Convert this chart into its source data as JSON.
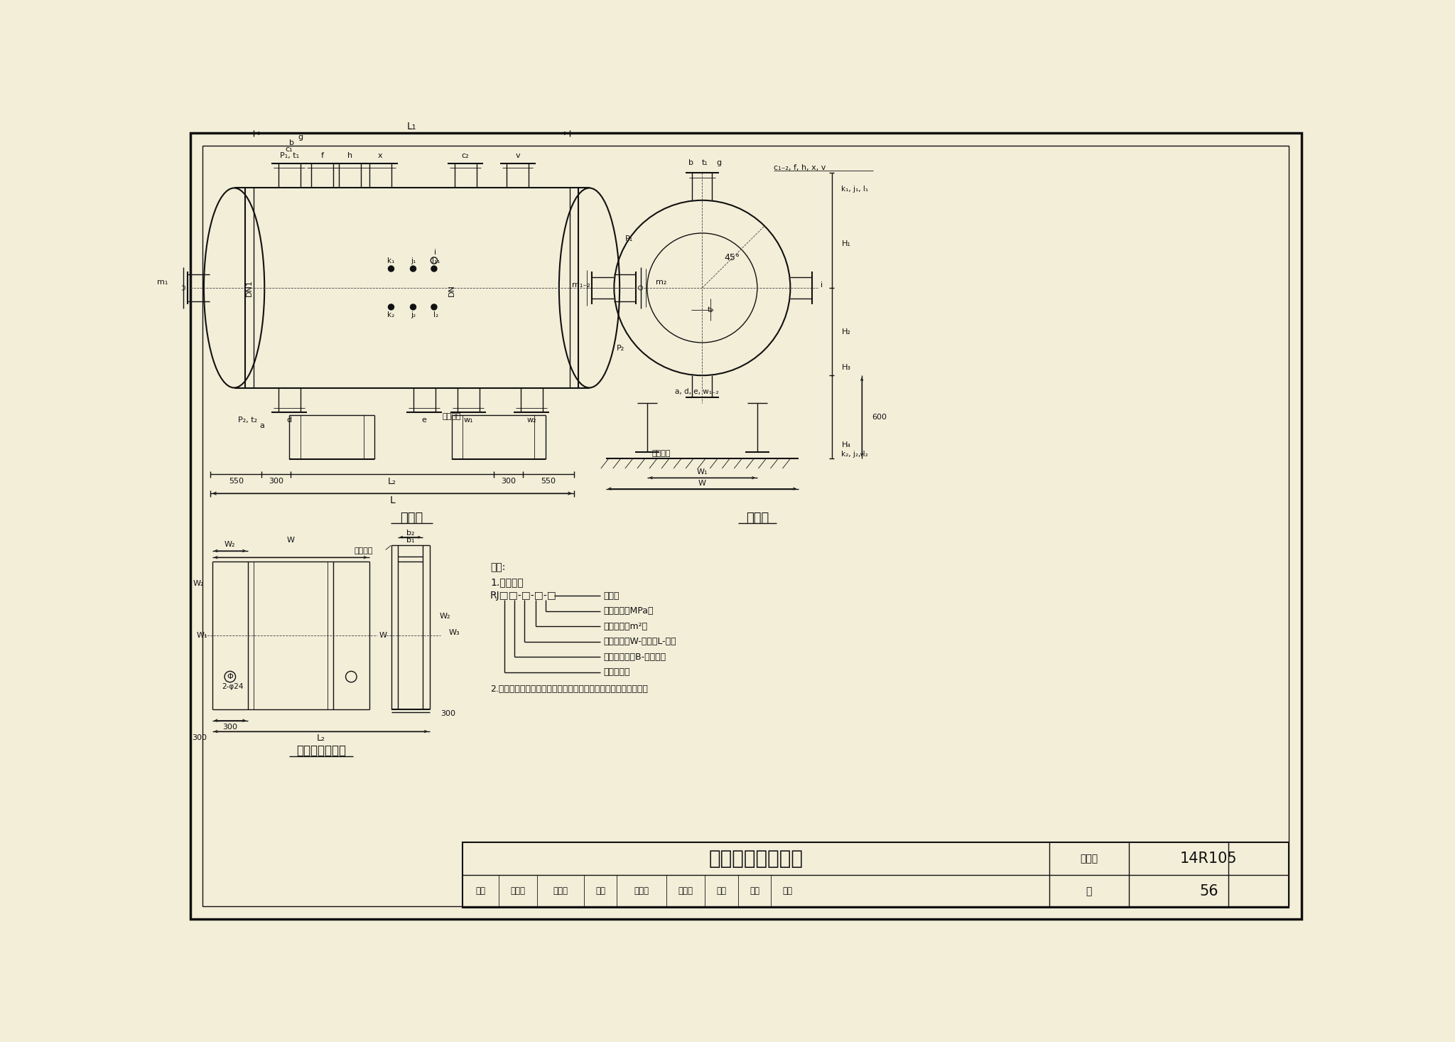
{
  "bg_color": "#f2eed8",
  "line_color": "#111111",
  "title_main": "热网加热器安装图",
  "atlas_label": "图集号",
  "title_number": "14R105",
  "page_label": "页",
  "page": "56",
  "fig_label_front": "立面图",
  "fig_label_right": "右视图",
  "fig_label_base": "支座安装尺寸图",
  "notes_header": "说明:",
  "note1": "1.型号说明",
  "note2_code": "RJ□□-□-□-□",
  "note_items": [
    "管程数",
    "设计压力（MPa）",
    "传热面积（m²）",
    "安装型式：W-卧式；L-立式",
    "换热管类型：B-不锈锤管",
    "热网加热器"
  ],
  "note3": "2.本图依据特定产品的图纸绘制。设计选用时需与厂商确认尺寸。",
  "review_label": "审核",
  "review_name1": "冯继蕃",
  "review_sig": "孙征涛",
  "check_label": "校对",
  "check_name": "王丹丹",
  "resp_label": "负责人",
  "design_label": "设计",
  "design_name": "朱正",
  "design_sig": "朱正"
}
